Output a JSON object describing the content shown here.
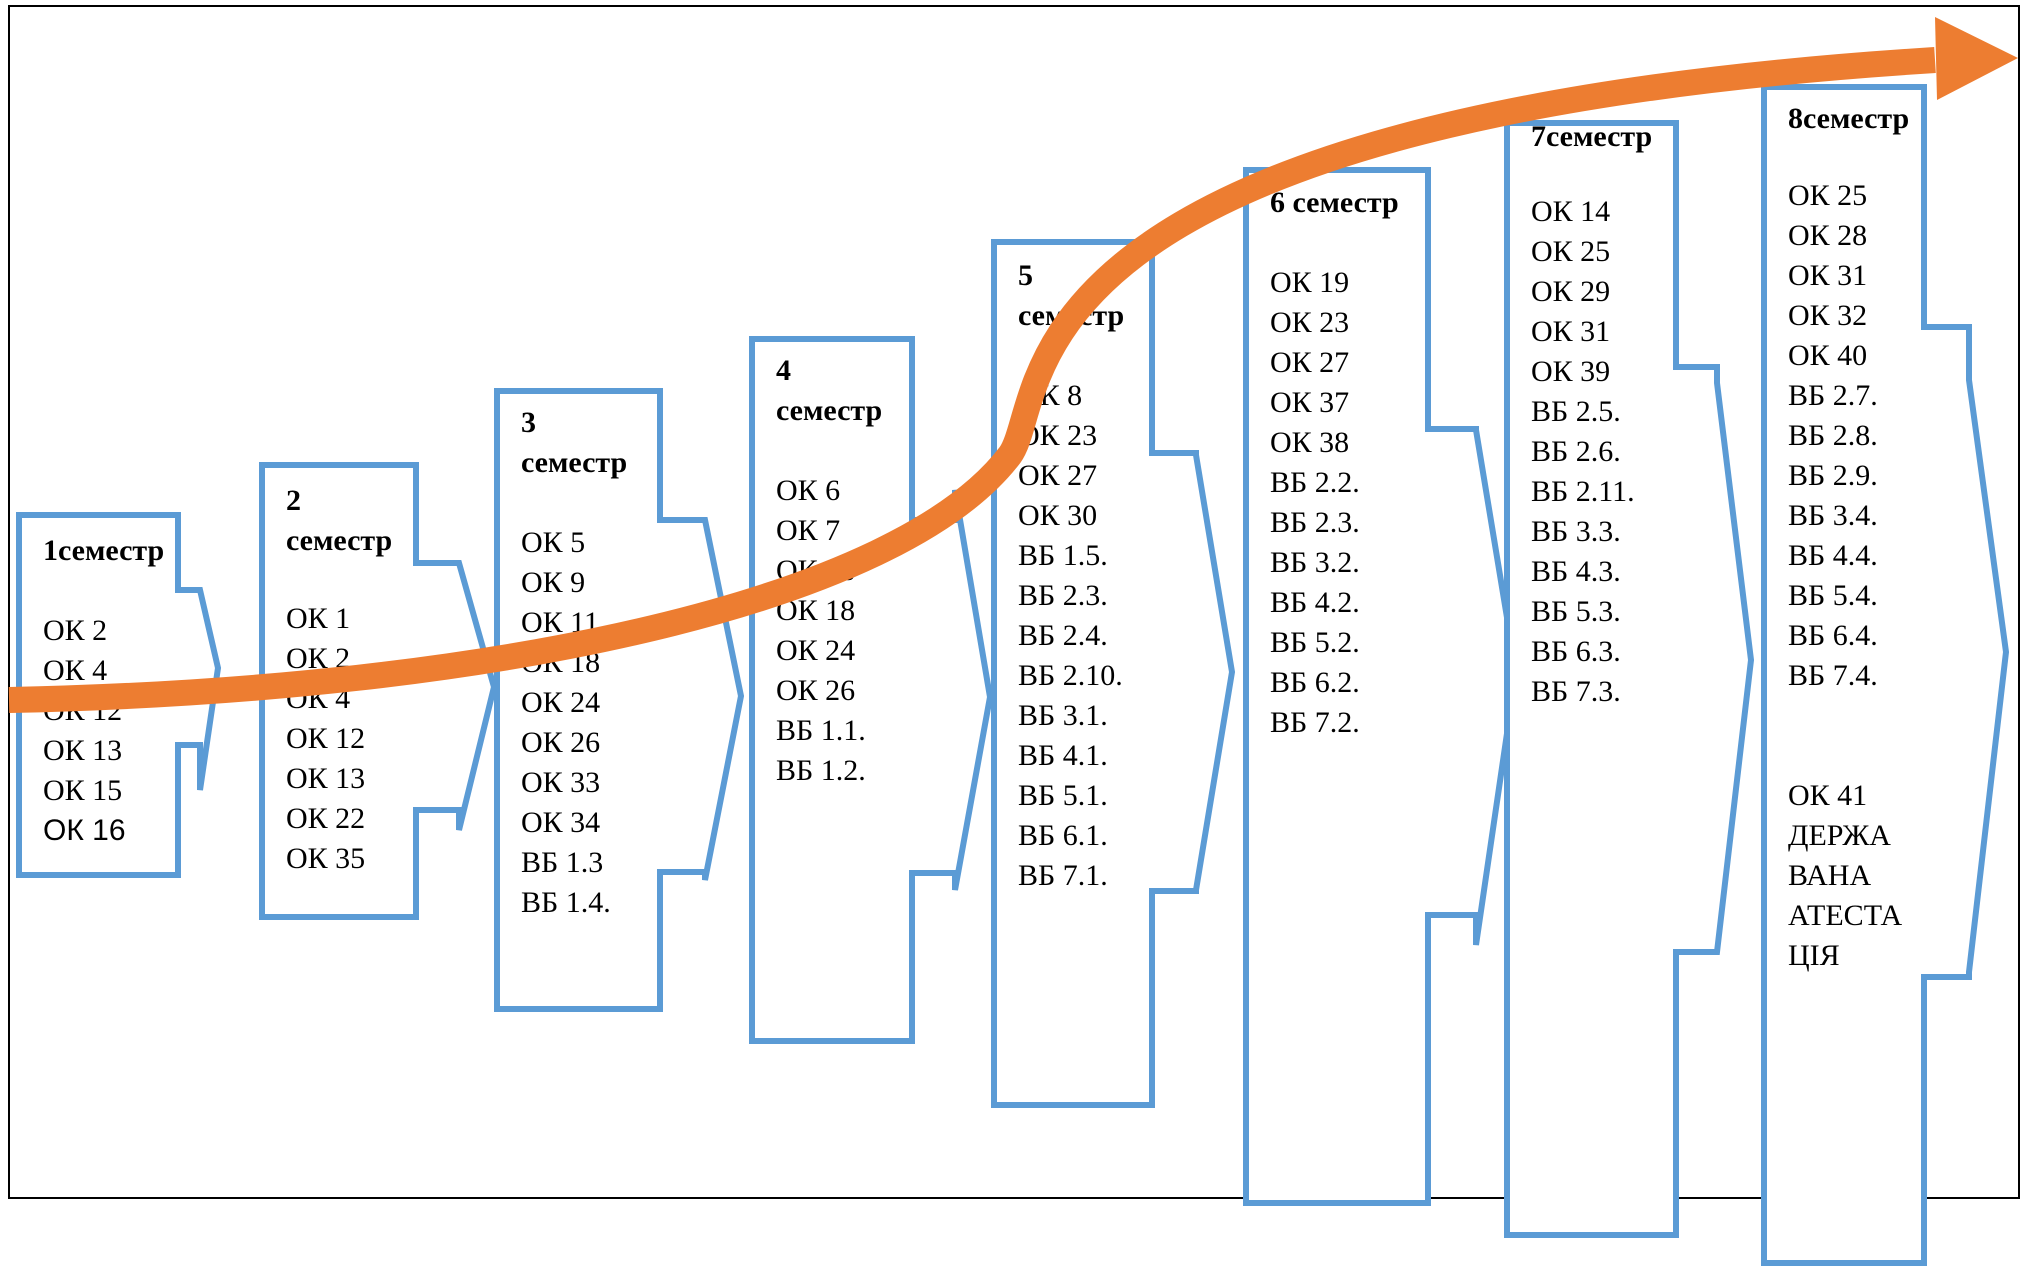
{
  "semesters": [
    {
      "title_lines": [
        "1семестр"
      ],
      "items": [
        "ОК 2",
        "ОК 4",
        "ОК 12",
        "ОК 13",
        "ОК 15",
        "ОК 16"
      ]
    },
    {
      "title_lines": [
        "2",
        "семестр"
      ],
      "items": [
        "ОК 1",
        "ОК 2",
        "ОК 4",
        "ОК 12",
        "ОК 13",
        "ОК 22",
        "ОК 35"
      ]
    },
    {
      "title_lines": [
        "3",
        "семестр"
      ],
      "items": [
        "ОК 5",
        "ОК 9",
        "ОК 11",
        "ОК 18",
        "ОК 24",
        "ОК 26",
        "ОК 33",
        "ОК 34",
        "ВБ 1.3",
        "ВБ 1.4."
      ]
    },
    {
      "title_lines": [
        "4",
        "семестр"
      ],
      "items": [
        "ОК 6",
        "ОК 7",
        "ОК 16",
        "ОК 18",
        "ОК 24",
        "ОК 26",
        "ВБ 1.1.",
        "ВБ 1.2."
      ]
    },
    {
      "title_lines": [
        "5",
        "семестр"
      ],
      "items": [
        "ОК 8",
        "ОК 23",
        "ОК 27",
        "ОК 30",
        "ВБ 1.5.",
        "ВБ 2.3.",
        "ВБ 2.4.",
        "ВБ 2.10.",
        "ВБ 3.1.",
        "ВБ 4.1.",
        "ВБ 5.1.",
        "ВБ 6.1.",
        "ВБ 7.1."
      ]
    },
    {
      "title_lines": [
        "6 семестр"
      ],
      "items": [
        "ОК 19",
        "ОК 23",
        "ОК 27",
        "ОК 37",
        "ОК 38",
        "ВБ 2.2.",
        "ВБ 2.3.",
        "ВБ 3.2.",
        "ВБ 4.2.",
        "ВБ 5.2.",
        "ВБ 6.2.",
        "ВБ 7.2."
      ]
    },
    {
      "title_lines": [
        "7семестр"
      ],
      "items": [
        "ОК 14",
        "ОК 25",
        "ОК 29",
        "ОК 31",
        "ОК 39",
        "ВБ 2.5.",
        "ВБ 2.6.",
        "ВБ 2.11.",
        "ВБ 3.3.",
        "ВБ 4.3.",
        "ВБ 5.3.",
        "ВБ 6.3.",
        "ВБ 7.3."
      ]
    },
    {
      "title_lines": [
        "8семестр"
      ],
      "items": [
        "ОК 25",
        "ОК 28",
        "ОК 31",
        "ОК 32",
        "ОК 40",
        "ВБ 2.7.",
        "ВБ 2.8.",
        "ВБ 2.9.",
        "ВБ 3.4.",
        "ВБ 4.4.",
        "ВБ 5.4.",
        "ВБ 6.4.",
        "ВБ 7.4.",
        "",
        "",
        "ОК 41",
        "ДЕРЖА",
        "ВАНА",
        "АТЕСТА",
        "ЦІЯ"
      ]
    }
  ],
  "colors": {
    "shape_stroke": "#5b9bd5",
    "trend_arrow": "#ed7d31",
    "frame": "#000000"
  }
}
